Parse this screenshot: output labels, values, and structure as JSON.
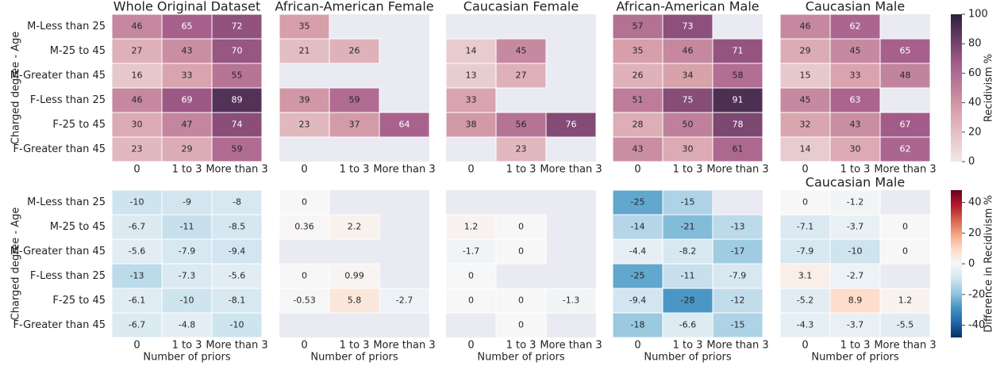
{
  "chart_data": [
    {
      "type": "heatmap",
      "y_label": "Charged degree - Age",
      "categories": [
        "0",
        "1 to 3",
        "More than 3"
      ],
      "rows": [
        "M-Less than 25",
        "M-25 to 45",
        "M-Greater than 45",
        "F-Less than 25",
        "F-25 to 45",
        "F-Greater than 45"
      ],
      "colors": [
        "#f2e8e6",
        "#d9a3ac",
        "#a45c8a",
        "#2d1e3e"
      ],
      "colorbar": {
        "label": "Recidivism %",
        "lim": [
          0,
          100
        ],
        "ticks": [
          0,
          20,
          40,
          60,
          80,
          100
        ]
      },
      "panels": [
        {
          "title": "Whole Original Dataset",
          "values": [
            [
              46,
              65,
              72
            ],
            [
              27,
              43,
              70
            ],
            [
              16,
              33,
              55
            ],
            [
              46,
              69,
              89
            ],
            [
              30,
              47,
              74
            ],
            [
              23,
              29,
              59
            ]
          ]
        },
        {
          "title": "African-American Female",
          "values": [
            [
              35,
              null,
              null
            ],
            [
              21,
              26,
              null
            ],
            [
              null,
              null,
              null
            ],
            [
              39,
              59,
              null
            ],
            [
              23,
              37,
              64
            ],
            [
              null,
              null,
              null
            ]
          ]
        },
        {
          "title": "Caucasian Female",
          "values": [
            [
              null,
              null,
              null
            ],
            [
              14,
              45,
              null
            ],
            [
              13,
              27,
              null
            ],
            [
              33,
              null,
              null
            ],
            [
              38,
              56,
              76
            ],
            [
              null,
              23,
              null
            ]
          ]
        },
        {
          "title": "African-American Male",
          "values": [
            [
              57,
              73,
              null
            ],
            [
              35,
              46,
              71
            ],
            [
              26,
              34,
              58
            ],
            [
              51,
              75,
              91
            ],
            [
              28,
              50,
              78
            ],
            [
              43,
              30,
              61
            ]
          ]
        },
        {
          "title": "Caucasian Male",
          "values": [
            [
              46,
              62,
              null
            ],
            [
              29,
              45,
              65
            ],
            [
              15,
              33,
              48
            ],
            [
              45,
              63,
              null
            ],
            [
              32,
              43,
              67
            ],
            [
              14,
              30,
              62
            ]
          ]
        }
      ]
    },
    {
      "type": "heatmap",
      "y_label": "Charged degree - Age",
      "x_label": "Number of priors",
      "categories": [
        "0",
        "1 to 3",
        "More than 3"
      ],
      "rows": [
        "M-Less than 25",
        "M-25 to 45",
        "M-Greater than 45",
        "F-Less than 25",
        "F-25 to 45",
        "F-Greater than 45"
      ],
      "colors": [
        "#053061",
        "#2166ac",
        "#4393c3",
        "#92c5de",
        "#d1e5f0",
        "#f7f7f7",
        "#fddbc7",
        "#f4a582",
        "#d6604d",
        "#b2182b",
        "#67001f"
      ],
      "colorbar": {
        "label": "Difference in Recidivism %",
        "lim": [
          -48,
          48
        ],
        "ticks": [
          -40,
          -20,
          0,
          20,
          40
        ]
      },
      "panels": [
        {
          "values": [
            [
              -10,
              -9,
              -8
            ],
            [
              -6.7,
              -11,
              -8.5
            ],
            [
              -5.6,
              -7.9,
              -9.4
            ],
            [
              -13,
              -7.3,
              -5.6
            ],
            [
              -6.1,
              -10,
              -8.1
            ],
            [
              -6.7,
              -4.8,
              -10
            ]
          ]
        },
        {
          "values": [
            [
              0,
              null,
              null
            ],
            [
              0.36,
              2.2,
              null
            ],
            [
              null,
              null,
              null
            ],
            [
              0,
              0.99,
              null
            ],
            [
              -0.53,
              5.8,
              -2.7
            ],
            [
              null,
              null,
              null
            ]
          ]
        },
        {
          "values": [
            [
              null,
              null,
              null
            ],
            [
              1.2,
              0,
              null
            ],
            [
              -1.7,
              0,
              null
            ],
            [
              0,
              null,
              null
            ],
            [
              0,
              0,
              -1.3
            ],
            [
              null,
              0,
              null
            ]
          ]
        },
        {
          "values": [
            [
              -25,
              -15,
              null
            ],
            [
              -14,
              -21,
              -13
            ],
            [
              -4.4,
              -8.2,
              -17
            ],
            [
              -25,
              -11,
              -7.9
            ],
            [
              -9.4,
              -28,
              -12
            ],
            [
              -18,
              -6.6,
              -15
            ]
          ]
        },
        {
          "title": "Caucasian Male",
          "values": [
            [
              0,
              -1.2,
              null
            ],
            [
              -7.1,
              -3.7,
              0
            ],
            [
              -7.9,
              -10,
              0
            ],
            [
              3.1,
              -2.7,
              null
            ],
            [
              -5.2,
              8.9,
              1.2
            ],
            [
              -4.3,
              -3.7,
              -5.5
            ]
          ]
        }
      ]
    }
  ]
}
